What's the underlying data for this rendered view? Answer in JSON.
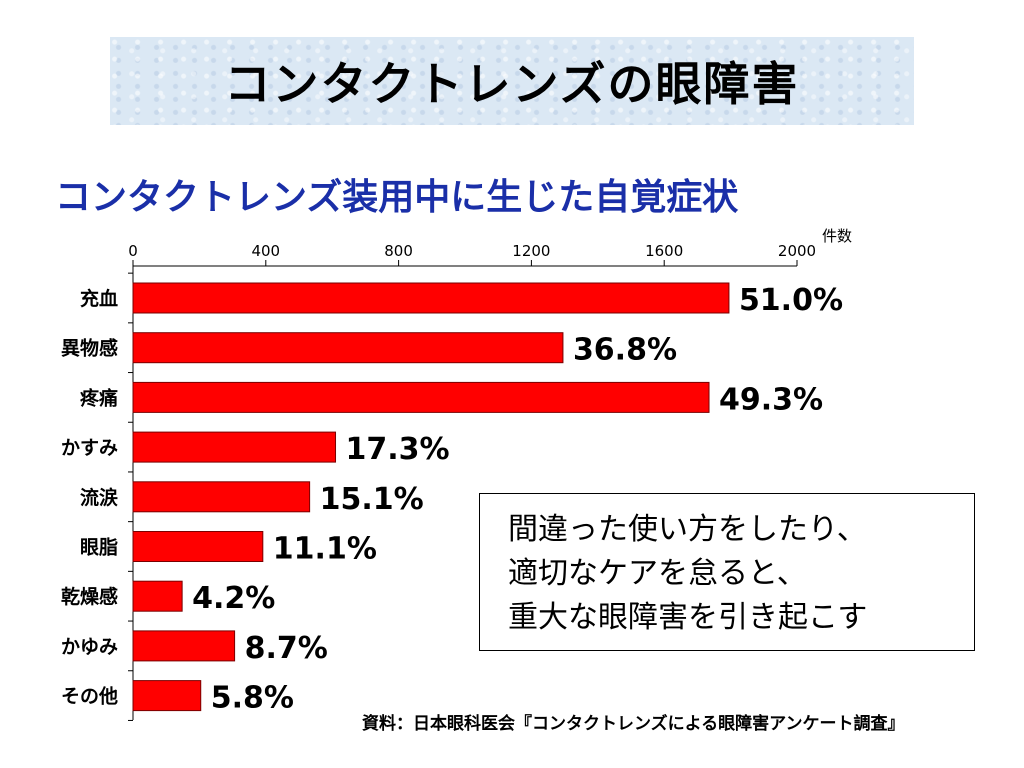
{
  "title": "コンタクトレンズの眼障害",
  "subtitle": "コンタクトレンズ装用中に生じた自覚症状",
  "message": {
    "lines": [
      "間違った使い方をしたり、",
      "適切なケアを怠ると、",
      "重大な眼障害を引き起こす"
    ]
  },
  "source": "資料：日本眼科医会『コンタクトレンズによる眼障害アンケート調査』",
  "chart_data": {
    "type": "bar",
    "orientation": "horizontal",
    "categories": [
      "充血",
      "異物感",
      "疼痛",
      "かすみ",
      "流涙",
      "眼脂",
      "乾燥感",
      "かゆみ",
      "その他"
    ],
    "values": [
      1795,
      1295,
      1735,
      610,
      532,
      391,
      148,
      306,
      204
    ],
    "data_labels": [
      "51.0%",
      "36.8%",
      "49.3%",
      "17.3%",
      "15.1%",
      "11.1%",
      "4.2%",
      "8.7%",
      "5.8%"
    ],
    "xlim": [
      0,
      2000
    ],
    "x_ticks": [
      "0",
      "400",
      "800",
      "1200",
      "1600",
      "2000"
    ],
    "x_tick_values": [
      0,
      400,
      800,
      1200,
      1600,
      2000
    ],
    "x_unit": "件数",
    "bar_color": "#ff0000",
    "bar_edge_color": "#7a0000",
    "grid": false
  }
}
